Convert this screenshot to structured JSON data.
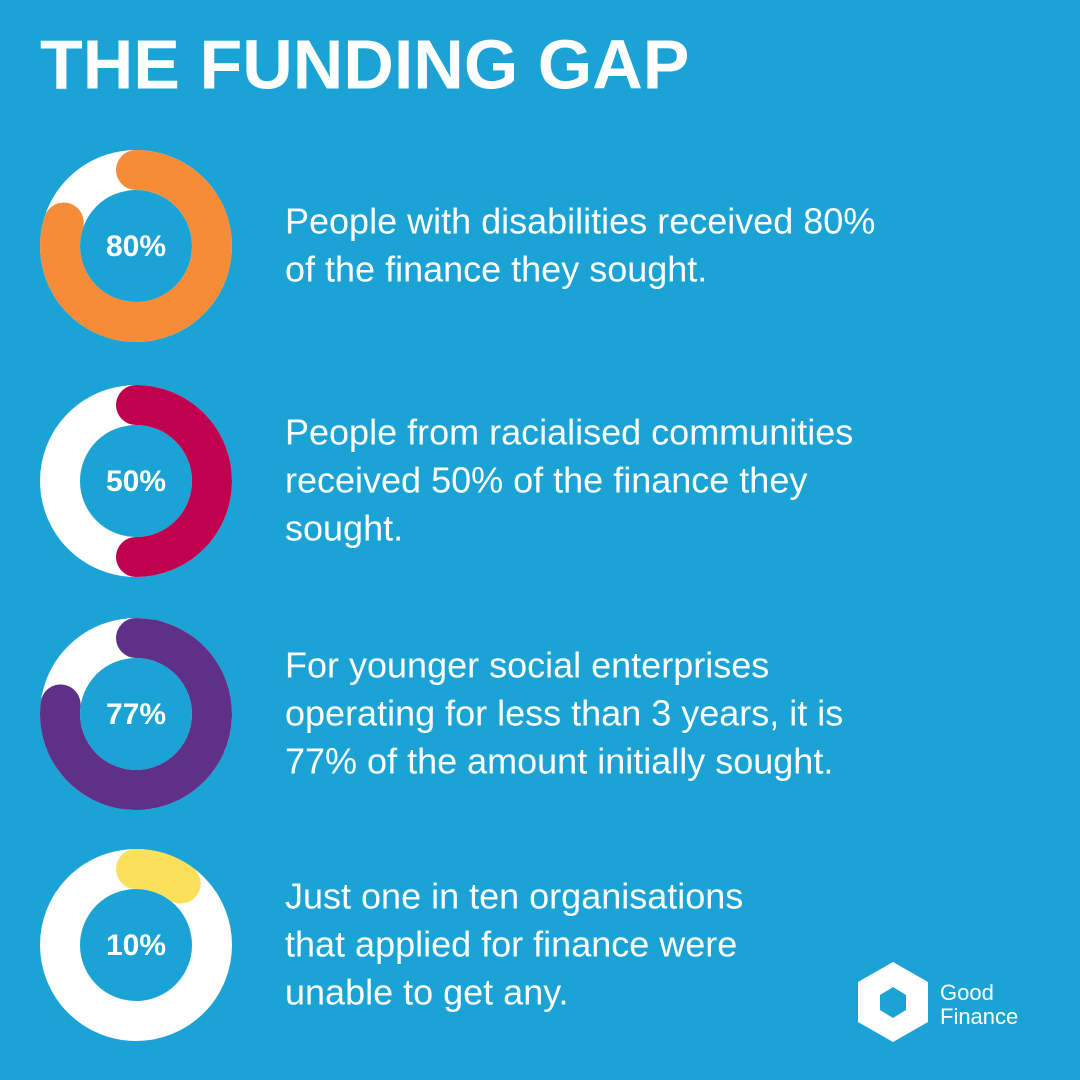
{
  "title": "THE FUNDING GAP",
  "chart_data": [
    {
      "type": "donut",
      "values": [
        80
      ],
      "value_labels": [
        "80%"
      ],
      "color": "#f68c38",
      "caption": [
        "People with disabilities received 80%",
        "of the finance they sought."
      ]
    },
    {
      "type": "donut",
      "values": [
        50
      ],
      "value_labels": [
        "50%"
      ],
      "color": "#c0004f",
      "caption": [
        "People from racialised communities",
        "received 50% of the finance they",
        "sought."
      ]
    },
    {
      "type": "donut",
      "values": [
        77
      ],
      "value_labels": [
        "77%"
      ],
      "color": "#5e3088",
      "caption": [
        "For younger social enterprises",
        "operating for less than 3 years, it is",
        "77% of the amount initially sought."
      ]
    },
    {
      "type": "donut",
      "values": [
        10
      ],
      "value_labels": [
        "10%"
      ],
      "color": "#fde059",
      "caption": [
        "Just one in ten organisations",
        "that applied for finance were",
        "unable to get any."
      ]
    }
  ],
  "logo": {
    "line1": "Good",
    "line2": "Finance"
  }
}
